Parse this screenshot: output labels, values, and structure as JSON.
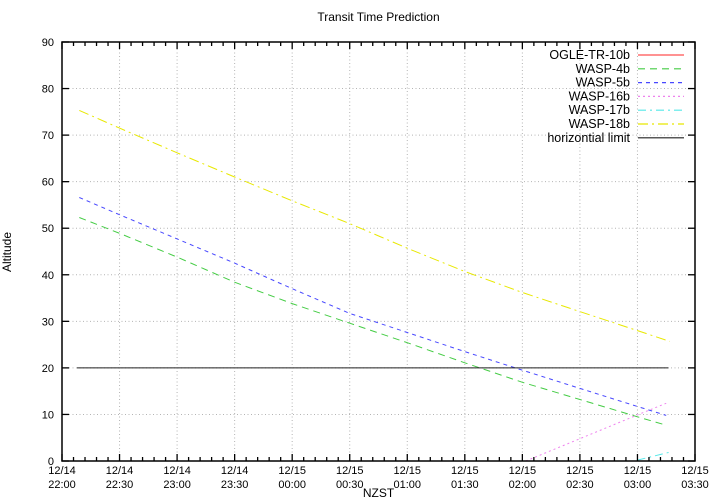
{
  "title": "Transit Time Prediction",
  "axes": {
    "x_label": "NZST",
    "y_label": "Altitude"
  },
  "colors": {
    "background": "#ffffff",
    "axis": "#000000",
    "grid": "#b4b4b4",
    "tick_text": "#000000"
  },
  "chart_data": {
    "type": "line",
    "title": "Transit Time Prediction",
    "xlabel": "NZST",
    "ylabel": "Altitude",
    "ylim": [
      0,
      90
    ],
    "y_major_tick_interval": 10,
    "grid": true,
    "legend_position": "top-right-inside-no-box",
    "x_axis": {
      "range_hours_after_2200": [
        0,
        5.5
      ],
      "major_tick_interval_hours": 0.5,
      "minor_tick_interval_hours": 0.1,
      "tick_labels": [
        {
          "t": 0.0,
          "date": "12/14",
          "time": "22:00"
        },
        {
          "t": 0.5,
          "date": "12/14",
          "time": "22:30"
        },
        {
          "t": 1.0,
          "date": "12/14",
          "time": "23:00"
        },
        {
          "t": 1.5,
          "date": "12/14",
          "time": "23:30"
        },
        {
          "t": 2.0,
          "date": "12/15",
          "time": "00:00"
        },
        {
          "t": 2.5,
          "date": "12/15",
          "time": "00:30"
        },
        {
          "t": 3.0,
          "date": "12/15",
          "time": "01:00"
        },
        {
          "t": 3.5,
          "date": "12/15",
          "time": "01:30"
        },
        {
          "t": 4.0,
          "date": "12/15",
          "time": "02:00"
        },
        {
          "t": 4.5,
          "date": "12/15",
          "time": "02:30"
        },
        {
          "t": 5.0,
          "date": "12/15",
          "time": "03:00"
        },
        {
          "t": 5.5,
          "date": "12/15",
          "time": "03:30"
        }
      ]
    },
    "y_ticks": [
      0,
      10,
      20,
      30,
      40,
      50,
      60,
      70,
      80,
      90
    ],
    "series": [
      {
        "name": "OGLE-TR-10b",
        "color": "#ff5050",
        "dash": "",
        "points": []
      },
      {
        "name": "WASP-4b",
        "color": "#44cc44",
        "dash": "7 5",
        "points": [
          [
            0.15,
            52.3
          ],
          [
            0.5,
            48.9
          ],
          [
            1.0,
            43.8
          ],
          [
            1.5,
            38.4
          ],
          [
            2.0,
            33.8
          ],
          [
            2.5,
            29.6
          ],
          [
            3.0,
            25.4
          ],
          [
            3.5,
            21.1
          ],
          [
            4.0,
            16.9
          ],
          [
            4.5,
            13.2
          ],
          [
            5.0,
            9.5
          ],
          [
            5.25,
            7.7
          ]
        ]
      },
      {
        "name": "WASP-5b",
        "color": "#4848ff",
        "dash": "4 4",
        "points": [
          [
            0.15,
            56.6
          ],
          [
            0.5,
            52.9
          ],
          [
            1.0,
            47.7
          ],
          [
            1.5,
            42.5
          ],
          [
            2.0,
            37.0
          ],
          [
            2.5,
            31.7
          ],
          [
            3.0,
            27.6
          ],
          [
            3.5,
            23.5
          ],
          [
            4.0,
            19.5
          ],
          [
            4.5,
            15.6
          ],
          [
            5.0,
            11.7
          ],
          [
            5.25,
            9.8
          ]
        ]
      },
      {
        "name": "WASP-16b",
        "color": "#ee82ee",
        "dash": "2 3",
        "points": [
          [
            4.03,
            0.0
          ],
          [
            4.5,
            4.8
          ],
          [
            5.0,
            9.9
          ],
          [
            5.25,
            12.4
          ]
        ]
      },
      {
        "name": "WASP-17b",
        "color": "#55e8e8",
        "dash": "8 4 2 4",
        "points": [
          [
            5.0,
            0.2
          ],
          [
            5.28,
            1.9
          ]
        ]
      },
      {
        "name": "WASP-18b",
        "color": "#e8e800",
        "dash": "10 4 2 4",
        "points": [
          [
            0.15,
            75.3
          ],
          [
            0.5,
            71.5
          ],
          [
            1.0,
            66.2
          ],
          [
            1.5,
            61.0
          ],
          [
            2.0,
            55.9
          ],
          [
            2.5,
            51.0
          ],
          [
            3.0,
            45.7
          ],
          [
            3.5,
            40.7
          ],
          [
            4.0,
            36.2
          ],
          [
            4.5,
            32.1
          ],
          [
            5.0,
            28.0
          ],
          [
            5.28,
            25.7
          ]
        ]
      },
      {
        "name": "horizontial limit",
        "color": "#202020",
        "dash": "",
        "points": [
          [
            0.13,
            20
          ],
          [
            5.27,
            20
          ]
        ]
      }
    ]
  }
}
